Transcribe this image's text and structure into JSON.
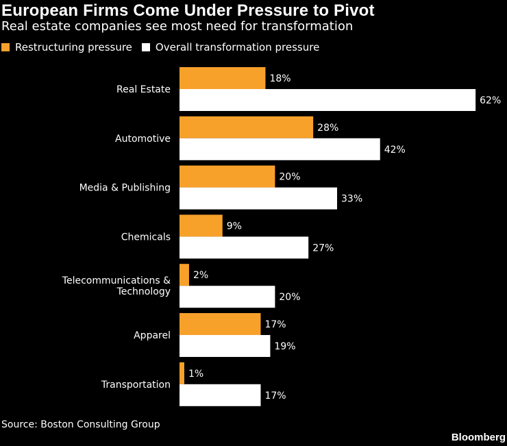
{
  "title": "European Firms Come Under Pressure to Pivot",
  "subtitle": "Real estate companies see most need for transformation",
  "source": "Source: Boston Consulting Group",
  "brand": "Bloomberg",
  "colors": {
    "restructuring": "#f7a12b",
    "overall": "#ffffff",
    "background": "#000000"
  },
  "chart_data": {
    "type": "bar",
    "orientation": "horizontal",
    "categories": [
      [
        "Real Estate"
      ],
      [
        "Automotive"
      ],
      [
        "Media & Publishing"
      ],
      [
        "Chemicals"
      ],
      [
        "Telecommunications &",
        "Technology"
      ],
      [
        "Apparel"
      ],
      [
        "Transportation"
      ]
    ],
    "series": [
      {
        "name": "Restructuring pressure",
        "values": [
          18,
          28,
          20,
          9,
          2,
          17,
          1
        ],
        "labels": [
          "18%",
          "28%",
          "20%",
          "9%",
          "2%",
          "17%",
          "1%"
        ]
      },
      {
        "name": "Overall transformation pressure",
        "values": [
          62,
          42,
          33,
          27,
          20,
          19,
          17
        ],
        "labels": [
          "62%",
          "42%",
          "33%",
          "27%",
          "20%",
          "19%",
          "17%"
        ]
      }
    ],
    "xlim": [
      0,
      62
    ],
    "grid": false,
    "legend": "top-left"
  }
}
